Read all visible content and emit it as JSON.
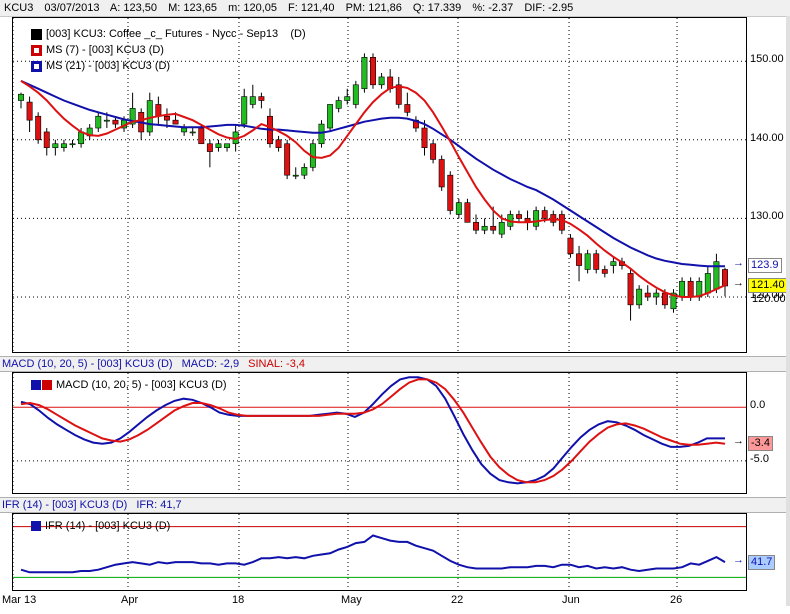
{
  "header": {
    "symbol": "KCU3",
    "date": "03/07/2013",
    "open": "A: 123,50",
    "max": "M: 123,65",
    "min": "m: 120,05",
    "close": "F: 121,40",
    "pm": "PM: 121,86",
    "q": "Q: 17.339",
    "pct": "%: -2.37",
    "dif": "DIF: -2.95"
  },
  "price_legend": {
    "series": "[003] KCU3: Coffee _c_ Futures - Nycc - Sep13",
    "series_tag": "(D)",
    "ma7": "MS (7)  - [003] KCU3 (D)",
    "ma21": "MS (21)  - [003] KCU3 (D)"
  },
  "macd_bar": {
    "title": "MACD (10, 20, 5)  - [003] KCU3 (D)",
    "macd": "MACD: -2,9",
    "signal": "SINAL: -3,4"
  },
  "macd_legend": "MACD (10, 20, 5)  - [003] KCU3 (D)",
  "ifr_bar": {
    "title": "IFR (14)  - [003] KCU3 (D)",
    "value": "IFR: 41,7"
  },
  "ifr_legend": "IFR (14)  - [003] KCU3 (D)",
  "tags": {
    "ma21": "123.9",
    "last": "121.40",
    "hidden": "120.00",
    "signal": "-3.4",
    "ifr": "41.7"
  },
  "colors": {
    "up": "#22bb22",
    "down": "#dd1111",
    "ma7": "#dd1111",
    "ma21": "#1010aa",
    "macd": "#1010aa",
    "signal": "#dd1111",
    "ifr": "#1010aa",
    "ifr_upper": "#cc0000",
    "ifr_lower": "#00aa00",
    "grid": "#000000",
    "last_tag_bg": "#ffff00",
    "ma21_tag_bg": "#ffffff",
    "signal_tag_bg": "#ff9999",
    "ifr_tag_bg": "#aaccff"
  },
  "chart_data": [
    {
      "type": "candlestick",
      "title": "[003] KCU3: Coffee _c_ Futures - Nycc - Sep13",
      "x_ticks": [
        "Mar 13",
        "Apr",
        "18",
        "May",
        "22",
        "Jun",
        "26"
      ],
      "y_ticks": [
        120.0,
        130.0,
        140.0,
        150.0
      ],
      "ylim": [
        113.0,
        155.5
      ],
      "grid": true,
      "candles": [
        {
          "o": 145.0,
          "h": 146.0,
          "l": 144.0,
          "c": 145.8
        },
        {
          "o": 144.8,
          "h": 145.5,
          "l": 141.0,
          "c": 142.5
        },
        {
          "o": 143.0,
          "h": 143.5,
          "l": 139.5,
          "c": 140.0
        },
        {
          "o": 141.0,
          "h": 141.5,
          "l": 138.0,
          "c": 139.0
        },
        {
          "o": 139.0,
          "h": 140.0,
          "l": 138.0,
          "c": 139.5
        },
        {
          "o": 139.0,
          "h": 140.0,
          "l": 138.5,
          "c": 139.5
        },
        {
          "o": 139.5,
          "h": 140.0,
          "l": 139.0,
          "c": 139.5
        },
        {
          "o": 139.5,
          "h": 141.5,
          "l": 139.0,
          "c": 141.0
        },
        {
          "o": 140.5,
          "h": 142.0,
          "l": 140.0,
          "c": 141.5
        },
        {
          "o": 141.5,
          "h": 143.5,
          "l": 141.0,
          "c": 143.0
        },
        {
          "o": 142.5,
          "h": 143.5,
          "l": 141.5,
          "c": 142.5
        },
        {
          "o": 142.5,
          "h": 143.0,
          "l": 141.5,
          "c": 142.0
        },
        {
          "o": 141.5,
          "h": 143.0,
          "l": 141.0,
          "c": 142.5
        },
        {
          "o": 142.0,
          "h": 146.0,
          "l": 141.5,
          "c": 144.0
        },
        {
          "o": 143.5,
          "h": 144.0,
          "l": 140.0,
          "c": 141.0
        },
        {
          "o": 141.0,
          "h": 146.0,
          "l": 140.5,
          "c": 145.0
        },
        {
          "o": 144.5,
          "h": 145.5,
          "l": 142.0,
          "c": 143.0
        },
        {
          "o": 143.0,
          "h": 144.0,
          "l": 141.5,
          "c": 142.5
        },
        {
          "o": 142.5,
          "h": 143.5,
          "l": 142.0,
          "c": 142.0
        },
        {
          "o": 141.0,
          "h": 142.0,
          "l": 140.5,
          "c": 141.5
        },
        {
          "o": 141.0,
          "h": 141.5,
          "l": 140.5,
          "c": 141.0
        },
        {
          "o": 141.5,
          "h": 142.0,
          "l": 139.5,
          "c": 139.5
        },
        {
          "o": 139.5,
          "h": 140.0,
          "l": 136.5,
          "c": 138.5
        },
        {
          "o": 139.0,
          "h": 140.0,
          "l": 138.5,
          "c": 139.5
        },
        {
          "o": 139.0,
          "h": 139.5,
          "l": 138.5,
          "c": 139.5
        },
        {
          "o": 139.5,
          "h": 142.0,
          "l": 138.5,
          "c": 141.0
        },
        {
          "o": 142.0,
          "h": 146.5,
          "l": 141.5,
          "c": 145.5
        },
        {
          "o": 144.5,
          "h": 147.0,
          "l": 144.0,
          "c": 145.5
        },
        {
          "o": 145.5,
          "h": 146.0,
          "l": 144.0,
          "c": 145.0
        },
        {
          "o": 143.0,
          "h": 144.0,
          "l": 139.0,
          "c": 139.5
        },
        {
          "o": 140.0,
          "h": 140.5,
          "l": 138.5,
          "c": 139.0
        },
        {
          "o": 139.5,
          "h": 140.0,
          "l": 135.0,
          "c": 135.5
        },
        {
          "o": 135.5,
          "h": 136.5,
          "l": 135.0,
          "c": 135.5
        },
        {
          "o": 135.5,
          "h": 137.0,
          "l": 135.0,
          "c": 136.5
        },
        {
          "o": 136.5,
          "h": 140.0,
          "l": 136.0,
          "c": 139.5
        },
        {
          "o": 139.5,
          "h": 142.5,
          "l": 139.0,
          "c": 142.0
        },
        {
          "o": 141.5,
          "h": 144.5,
          "l": 141.0,
          "c": 144.5
        },
        {
          "o": 144.0,
          "h": 145.5,
          "l": 143.5,
          "c": 145.0
        },
        {
          "o": 145.0,
          "h": 146.5,
          "l": 144.5,
          "c": 145.5
        },
        {
          "o": 144.5,
          "h": 147.5,
          "l": 144.0,
          "c": 147.0
        },
        {
          "o": 146.5,
          "h": 151.0,
          "l": 146.0,
          "c": 150.5
        },
        {
          "o": 150.5,
          "h": 151.0,
          "l": 146.5,
          "c": 147.0
        },
        {
          "o": 147.0,
          "h": 148.5,
          "l": 146.5,
          "c": 148.0
        },
        {
          "o": 148.0,
          "h": 149.0,
          "l": 146.0,
          "c": 146.5
        },
        {
          "o": 147.0,
          "h": 148.0,
          "l": 144.0,
          "c": 144.5
        },
        {
          "o": 144.5,
          "h": 146.0,
          "l": 143.0,
          "c": 143.5
        },
        {
          "o": 142.5,
          "h": 143.0,
          "l": 141.0,
          "c": 141.5
        },
        {
          "o": 141.5,
          "h": 142.5,
          "l": 138.0,
          "c": 139.0
        },
        {
          "o": 139.5,
          "h": 140.0,
          "l": 137.0,
          "c": 137.5
        },
        {
          "o": 137.5,
          "h": 138.0,
          "l": 133.5,
          "c": 134.0
        },
        {
          "o": 135.5,
          "h": 136.0,
          "l": 130.5,
          "c": 131.0
        },
        {
          "o": 130.5,
          "h": 132.5,
          "l": 130.0,
          "c": 132.0
        },
        {
          "o": 132.0,
          "h": 132.5,
          "l": 129.5,
          "c": 129.5
        },
        {
          "o": 129.5,
          "h": 130.5,
          "l": 128.0,
          "c": 128.5
        },
        {
          "o": 128.5,
          "h": 130.0,
          "l": 128.0,
          "c": 129.0
        },
        {
          "o": 129.0,
          "h": 131.5,
          "l": 128.0,
          "c": 128.5
        },
        {
          "o": 128.0,
          "h": 130.5,
          "l": 127.5,
          "c": 129.5
        },
        {
          "o": 129.0,
          "h": 131.0,
          "l": 128.5,
          "c": 130.5
        },
        {
          "o": 130.5,
          "h": 131.0,
          "l": 129.5,
          "c": 130.0
        },
        {
          "o": 130.0,
          "h": 131.0,
          "l": 128.5,
          "c": 129.5
        },
        {
          "o": 129.0,
          "h": 131.5,
          "l": 128.5,
          "c": 131.0
        },
        {
          "o": 131.0,
          "h": 131.5,
          "l": 129.5,
          "c": 130.0
        },
        {
          "o": 130.5,
          "h": 131.0,
          "l": 129.0,
          "c": 129.5
        },
        {
          "o": 130.5,
          "h": 131.0,
          "l": 128.0,
          "c": 128.5
        },
        {
          "o": 127.5,
          "h": 128.0,
          "l": 125.0,
          "c": 125.5
        },
        {
          "o": 125.5,
          "h": 126.5,
          "l": 122.0,
          "c": 124.0
        },
        {
          "o": 123.5,
          "h": 126.0,
          "l": 123.0,
          "c": 125.5
        },
        {
          "o": 125.5,
          "h": 126.0,
          "l": 123.0,
          "c": 123.5
        },
        {
          "o": 123.5,
          "h": 124.0,
          "l": 122.5,
          "c": 123.0
        },
        {
          "o": 124.0,
          "h": 125.0,
          "l": 123.0,
          "c": 124.5
        },
        {
          "o": 124.5,
          "h": 125.0,
          "l": 123.5,
          "c": 124.0
        },
        {
          "o": 123.0,
          "h": 123.5,
          "l": 117.0,
          "c": 119.0
        },
        {
          "o": 119.0,
          "h": 121.5,
          "l": 118.5,
          "c": 121.0
        },
        {
          "o": 120.5,
          "h": 121.5,
          "l": 119.5,
          "c": 120.0
        },
        {
          "o": 120.0,
          "h": 121.0,
          "l": 119.0,
          "c": 120.5
        },
        {
          "o": 120.5,
          "h": 121.0,
          "l": 118.5,
          "c": 119.0
        },
        {
          "o": 118.5,
          "h": 121.0,
          "l": 118.0,
          "c": 120.5
        },
        {
          "o": 120.0,
          "h": 122.5,
          "l": 119.5,
          "c": 122.0
        },
        {
          "o": 122.0,
          "h": 122.5,
          "l": 119.5,
          "c": 120.0
        },
        {
          "o": 120.0,
          "h": 122.5,
          "l": 119.5,
          "c": 122.0
        },
        {
          "o": 120.5,
          "h": 124.0,
          "l": 120.0,
          "c": 123.0
        },
        {
          "o": 121.0,
          "h": 125.5,
          "l": 120.5,
          "c": 124.5
        },
        {
          "o": 123.5,
          "h": 123.7,
          "l": 120.1,
          "c": 121.4
        }
      ],
      "ma7": [
        147.5,
        146.8,
        146.0,
        145.0,
        143.8,
        142.7,
        141.8,
        141.0,
        140.6,
        140.5,
        140.8,
        141.3,
        141.8,
        142.3,
        142.5,
        142.8,
        143.0,
        143.2,
        143.3,
        142.9,
        142.5,
        141.9,
        141.3,
        140.7,
        140.3,
        140.1,
        140.5,
        141.2,
        142.0,
        141.6,
        141.1,
        140.5,
        139.7,
        138.6,
        137.8,
        137.7,
        138.0,
        139.0,
        140.5,
        142.0,
        143.5,
        144.8,
        145.8,
        146.6,
        146.8,
        146.6,
        146.0,
        145.0,
        143.5,
        141.7,
        139.8,
        137.8,
        135.9,
        134.0,
        132.4,
        131.0,
        130.0,
        129.6,
        129.5,
        129.5,
        129.6,
        129.8,
        129.9,
        129.8,
        129.3,
        128.6,
        127.8,
        126.8,
        125.9,
        125.1,
        124.4,
        123.6,
        122.7,
        121.9,
        121.2,
        120.6,
        120.2,
        120.0,
        120.0,
        120.1,
        120.5,
        121.0,
        121.5
      ],
      "ma21": [
        147.5,
        147.0,
        146.5,
        146.0,
        145.5,
        145.0,
        144.6,
        144.2,
        143.8,
        143.5,
        143.2,
        142.9,
        142.6,
        142.4,
        142.2,
        142.0,
        141.9,
        141.8,
        141.7,
        141.6,
        141.6,
        141.6,
        141.7,
        141.8,
        141.9,
        141.9,
        141.8,
        141.6,
        141.4,
        141.3,
        141.3,
        141.2,
        141.1,
        141.0,
        140.9,
        140.9,
        141.1,
        141.4,
        141.7,
        142.0,
        142.3,
        142.5,
        142.7,
        142.8,
        142.8,
        142.7,
        142.4,
        142.0,
        141.4,
        140.7,
        140.0,
        139.2,
        138.4,
        137.6,
        136.9,
        136.2,
        135.6,
        135.0,
        134.5,
        134.0,
        133.6,
        133.0,
        132.4,
        131.7,
        131.0,
        130.3,
        129.6,
        128.9,
        128.2,
        127.5,
        126.9,
        126.3,
        125.8,
        125.3,
        124.9,
        124.6,
        124.4,
        124.2,
        124.1,
        124.0,
        123.9,
        123.9,
        123.9
      ]
    },
    {
      "type": "line",
      "title": "MACD (10, 20, 5)  - [003] KCU3 (D)",
      "y_ticks": [
        0.0,
        -5.0
      ],
      "ylim": [
        -8.0,
        3.2
      ],
      "reference_line": 0.0,
      "series": [
        {
          "name": "MACD",
          "values": [
            0.5,
            0.3,
            -0.3,
            -1.0,
            -1.6,
            -2.1,
            -2.6,
            -3.0,
            -3.3,
            -3.4,
            -3.3,
            -2.9,
            -2.3,
            -1.6,
            -0.9,
            -0.3,
            0.2,
            0.6,
            0.8,
            0.7,
            0.4,
            0.0,
            -0.5,
            -0.7,
            -0.8,
            -0.8,
            -0.8,
            -0.8,
            -0.8,
            -0.8,
            -0.8,
            -0.8,
            -0.8,
            -0.7,
            -0.6,
            -0.5,
            -0.6,
            -0.9,
            -0.5,
            0.3,
            1.2,
            2.0,
            2.6,
            2.8,
            2.8,
            2.6,
            2.0,
            0.8,
            -0.8,
            -2.5,
            -4.0,
            -5.3,
            -6.2,
            -6.8,
            -7.0,
            -7.1,
            -7.0,
            -6.8,
            -6.4,
            -5.7,
            -4.7,
            -3.7,
            -2.8,
            -2.1,
            -1.6,
            -1.3,
            -1.4,
            -1.7,
            -2.1,
            -2.6,
            -3.0,
            -3.4,
            -3.7,
            -3.7,
            -3.6,
            -3.3,
            -2.9,
            -2.9,
            -2.9
          ],
          "label": "MACD: -2,9"
        },
        {
          "name": "SINAL",
          "values": [
            0.3,
            0.4,
            0.2,
            -0.2,
            -0.7,
            -1.2,
            -1.7,
            -2.1,
            -2.5,
            -2.9,
            -3.1,
            -3.2,
            -3.0,
            -2.6,
            -2.1,
            -1.5,
            -0.9,
            -0.3,
            0.1,
            0.4,
            0.4,
            0.2,
            -0.1,
            -0.5,
            -0.7,
            -0.8,
            -0.8,
            -0.8,
            -0.8,
            -0.8,
            -0.8,
            -0.8,
            -0.8,
            -0.8,
            -0.7,
            -0.6,
            -0.6,
            -0.6,
            -0.5,
            -0.2,
            0.3,
            1.0,
            1.7,
            2.3,
            2.6,
            2.6,
            2.3,
            1.7,
            0.7,
            -0.5,
            -1.9,
            -3.3,
            -4.6,
            -5.6,
            -6.3,
            -6.8,
            -7.0,
            -7.0,
            -6.8,
            -6.4,
            -5.8,
            -5.0,
            -4.1,
            -3.2,
            -2.5,
            -1.9,
            -1.6,
            -1.5,
            -1.7,
            -2.0,
            -2.4,
            -2.8,
            -3.1,
            -3.4,
            -3.5,
            -3.5,
            -3.4,
            -3.3,
            -3.4
          ],
          "label": "SINAL: -3,4"
        }
      ]
    },
    {
      "type": "line",
      "title": "IFR (14)  - [003] KCU3 (D)",
      "upper_line": 70,
      "lower_line": 30,
      "ylim": [
        20,
        80
      ],
      "series": [
        {
          "name": "IFR",
          "values": [
            36,
            34,
            34,
            34,
            34,
            34,
            34,
            35,
            35,
            36,
            38,
            40,
            41,
            42,
            41,
            40,
            42,
            41,
            42,
            42,
            42,
            41,
            41,
            40,
            41,
            41,
            40,
            42,
            45,
            45,
            46,
            45,
            46,
            45,
            47,
            48,
            49,
            52,
            54,
            57,
            58,
            63,
            61,
            59,
            58,
            58,
            55,
            53,
            51,
            47,
            43,
            40,
            38,
            37,
            37,
            37,
            37,
            38,
            38,
            38,
            39,
            39,
            38,
            40,
            40,
            38,
            39,
            37,
            38,
            37,
            38,
            36,
            35,
            36,
            37,
            37,
            37,
            38,
            41,
            40,
            43,
            46,
            42
          ],
          "label": "IFR: 41,7"
        }
      ]
    }
  ]
}
